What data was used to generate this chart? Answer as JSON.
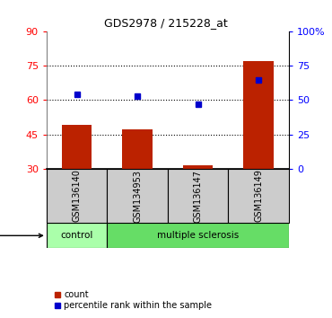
{
  "title": "GDS2978 / 215228_at",
  "samples": [
    "GSM136140",
    "GSM134953",
    "GSM136147",
    "GSM136149"
  ],
  "bar_values": [
    49.0,
    47.0,
    31.5,
    77.0
  ],
  "dot_values_pct": [
    54.0,
    53.0,
    47.0,
    65.0
  ],
  "bar_color": "#bb2200",
  "dot_color": "#0000cc",
  "left_ylim": [
    30,
    90
  ],
  "right_ylim": [
    0,
    100
  ],
  "left_yticks": [
    30,
    45,
    60,
    75,
    90
  ],
  "right_yticks": [
    0,
    25,
    50,
    75,
    100
  ],
  "right_yticklabels": [
    "0",
    "25",
    "50",
    "75",
    "100%"
  ],
  "hlines": [
    75,
    60,
    45
  ],
  "control_color": "#aaffaa",
  "ms_color": "#66dd66",
  "label_box_color": "#cccccc",
  "bar_width": 0.5,
  "legend_items": [
    "count",
    "percentile rank within the sample"
  ]
}
